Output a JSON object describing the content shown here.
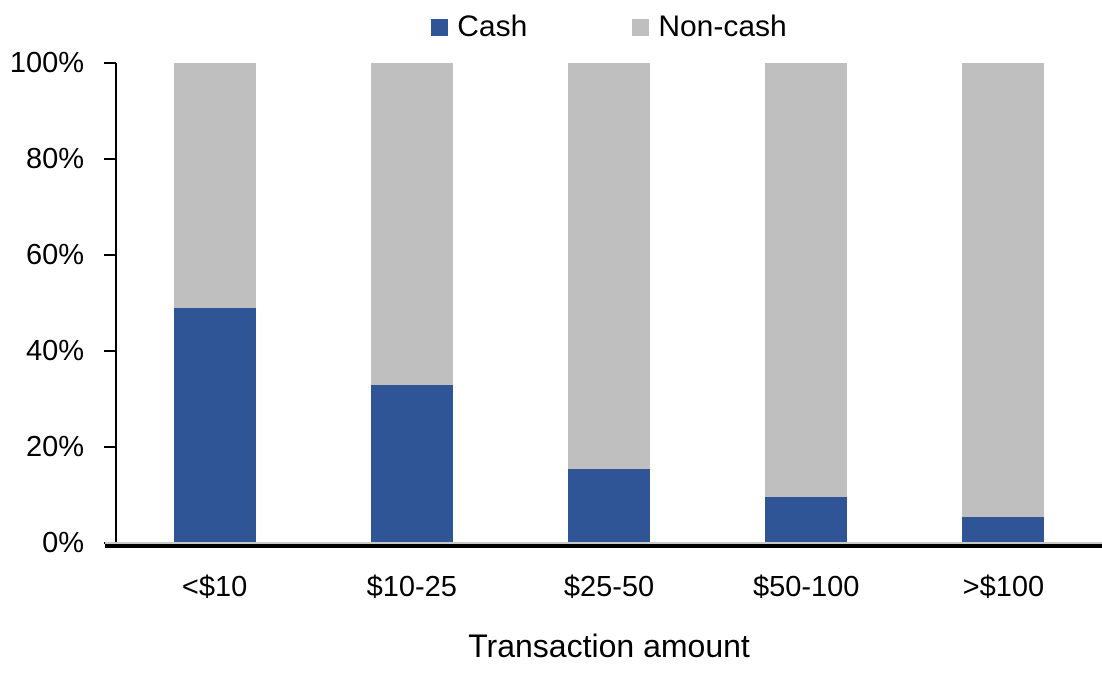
{
  "chart_data": {
    "type": "bar",
    "subtype": "stacked-100-percent",
    "title": "",
    "xlabel": "Transaction amount",
    "ylabel": "",
    "categories": [
      "<$10",
      "$10-25",
      "$25-50",
      "$50-100",
      ">$100"
    ],
    "series": [
      {
        "name": "Cash",
        "color": "#2F5597",
        "values": [
          49,
          33,
          15.5,
          9.5,
          5.5
        ]
      },
      {
        "name": "Non-cash",
        "color": "#BFBFBF",
        "values": [
          51,
          67,
          84.5,
          90.5,
          94.5
        ]
      }
    ],
    "ylim": [
      0,
      100
    ],
    "ytick_values": [
      0,
      20,
      40,
      60,
      80,
      100
    ],
    "ytick_labels": [
      "0%",
      "20%",
      "40%",
      "60%",
      "80%",
      "100%"
    ],
    "grid": false,
    "legend_position": "top-center",
    "axis_color": "#000000",
    "background_color": "#FFFFFF"
  }
}
